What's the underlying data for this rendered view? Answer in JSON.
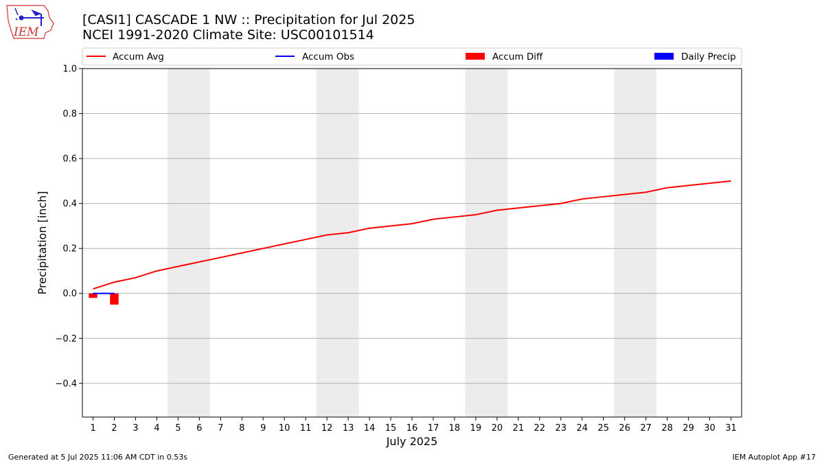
{
  "logo": {
    "text": "IEM",
    "icon": "iem-weather-station-logo"
  },
  "chart_data": {
    "type": "bar+line",
    "title": "[CASI1] CASCADE 1 NW :: Precipitation for Jul 2025",
    "subtitle": "NCEI 1991-2020 Climate Site: USC00101514",
    "xlabel": "July 2025",
    "ylabel": "Precipitation [inch]",
    "ylim": [
      -0.55,
      1.0
    ],
    "xlim": [
      0.5,
      31.5
    ],
    "yticks": [
      -0.4,
      -0.2,
      0.0,
      0.2,
      0.4,
      0.6,
      0.8,
      1.0
    ],
    "ytick_labels": [
      "−0.4",
      "−0.2",
      "0.0",
      "0.2",
      "0.4",
      "0.6",
      "0.8",
      "1.0"
    ],
    "xticks": [
      1,
      2,
      3,
      4,
      5,
      6,
      7,
      8,
      9,
      10,
      11,
      12,
      13,
      14,
      15,
      16,
      17,
      18,
      19,
      20,
      21,
      22,
      23,
      24,
      25,
      26,
      27,
      28,
      29,
      30,
      31
    ],
    "grid": "horizontal",
    "legend_placement": "top",
    "weekend_shading": [
      [
        4.5,
        6.5
      ],
      [
        11.5,
        13.5
      ],
      [
        18.5,
        20.5
      ],
      [
        25.5,
        27.5
      ]
    ],
    "series": [
      {
        "name": "Accum Avg",
        "kind": "line",
        "color": "#ff0000",
        "x": [
          1,
          2,
          3,
          4,
          5,
          6,
          7,
          8,
          9,
          10,
          11,
          12,
          13,
          14,
          15,
          16,
          17,
          18,
          19,
          20,
          21,
          22,
          23,
          24,
          25,
          26,
          27,
          28,
          29,
          30,
          31
        ],
        "values": [
          0.02,
          0.05,
          0.07,
          0.1,
          0.12,
          0.14,
          0.16,
          0.18,
          0.2,
          0.22,
          0.24,
          0.26,
          0.27,
          0.29,
          0.3,
          0.31,
          0.33,
          0.34,
          0.35,
          0.37,
          0.38,
          0.39,
          0.4,
          0.42,
          0.43,
          0.44,
          0.45,
          0.47,
          0.48,
          0.49,
          0.5
        ]
      },
      {
        "name": "Accum Obs",
        "kind": "line",
        "color": "#0000ff",
        "x": [
          1,
          2
        ],
        "values": [
          0.0,
          0.0
        ]
      },
      {
        "name": "Accum Diff",
        "kind": "bar",
        "color": "#ff0000",
        "x": [
          1,
          2
        ],
        "values": [
          -0.02,
          -0.05
        ]
      },
      {
        "name": "Daily Precip",
        "kind": "bar",
        "color": "#0000ff",
        "x": [
          1,
          2
        ],
        "values": [
          0.0,
          0.0
        ]
      }
    ]
  },
  "footer": {
    "left": "Generated at 5 Jul 2025 11:06 AM CDT in 0.53s",
    "right": "IEM Autoplot App #17"
  }
}
